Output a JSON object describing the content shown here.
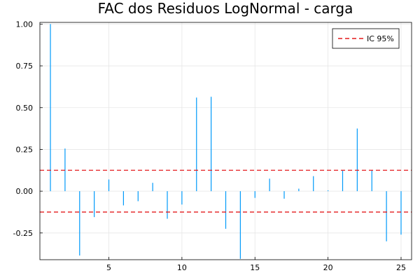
{
  "chart_data": {
    "type": "bar",
    "title": "FAC dos Residuos  LogNormal - carga",
    "xlabel": "",
    "ylabel": "",
    "xlim": [
      0.28,
      25.72
    ],
    "ylim": [
      -0.41,
      1.01
    ],
    "x_ticks": [
      5,
      10,
      15,
      20,
      25
    ],
    "y_ticks": [
      -0.25,
      0.0,
      0.25,
      0.5,
      0.75,
      1.0
    ],
    "x_tick_labels": [
      "5",
      "10",
      "15",
      "20",
      "25"
    ],
    "y_tick_labels": [
      "-0.25",
      "0.00",
      "0.25",
      "0.50",
      "0.75",
      "1.00"
    ],
    "grid": true,
    "legend_position": "top-right",
    "x": [
      1,
      2,
      3,
      4,
      5,
      6,
      7,
      8,
      9,
      10,
      11,
      12,
      13,
      14,
      15,
      16,
      17,
      18,
      19,
      20,
      21,
      22,
      23,
      24,
      25
    ],
    "series": [
      {
        "values": [
          1.0,
          0.255,
          -0.385,
          -0.155,
          0.07,
          -0.085,
          -0.06,
          0.05,
          -0.165,
          -0.08,
          0.56,
          0.565,
          -0.225,
          -0.405,
          -0.04,
          0.075,
          -0.045,
          0.015,
          0.09,
          0.005,
          0.125,
          0.375,
          0.125,
          -0.3,
          -0.26
        ],
        "color": "#009AFA"
      }
    ],
    "reference_lines": [
      {
        "name": "IC 95%",
        "values": [
          0.125,
          -0.125
        ],
        "color": "#E41A1C",
        "style": "dashed"
      }
    ]
  }
}
